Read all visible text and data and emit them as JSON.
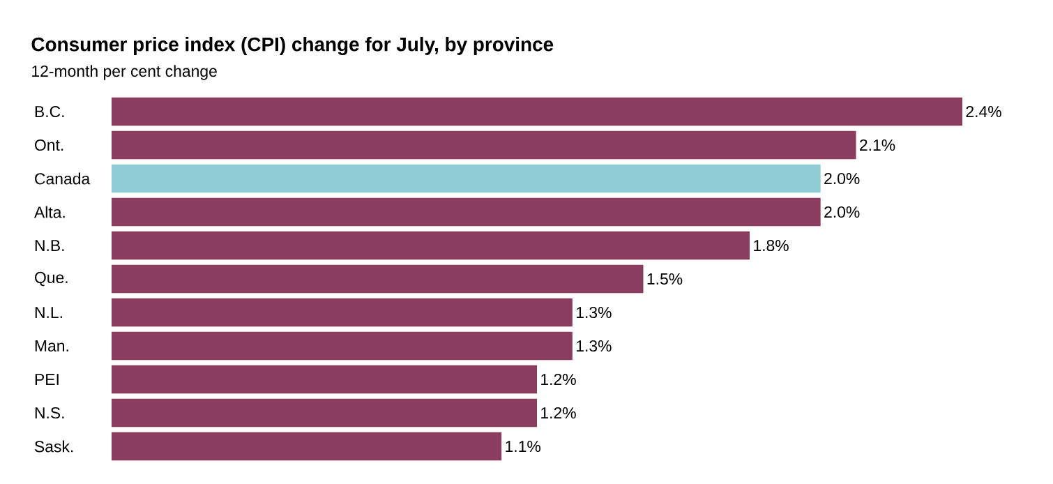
{
  "chart_data": {
    "type": "bar",
    "orientation": "horizontal",
    "title": "Consumer price index (CPI) change for July, by province",
    "subtitle": "12-month per cent change",
    "categories": [
      "B.C.",
      "Ont.",
      "Canada",
      "Alta.",
      "N.B.",
      "Que.",
      "N.L.",
      "Man.",
      "PEI",
      "N.S.",
      "Sask."
    ],
    "values": [
      2.4,
      2.1,
      2.0,
      2.0,
      1.8,
      1.5,
      1.3,
      1.3,
      1.2,
      1.2,
      1.1
    ],
    "value_labels": [
      "2.4%",
      "2.1%",
      "2.0%",
      "2.0%",
      "1.8%",
      "1.5%",
      "1.3%",
      "1.3%",
      "1.2%",
      "1.2%",
      "1.1%"
    ],
    "colors": [
      "#8a3d5e",
      "#8a3d5e",
      "#8fccd6",
      "#8a3d5e",
      "#8a3d5e",
      "#8a3d5e",
      "#8a3d5e",
      "#8a3d5e",
      "#8a3d5e",
      "#8a3d5e",
      "#8a3d5e"
    ],
    "relative": false,
    "legend": false
  }
}
